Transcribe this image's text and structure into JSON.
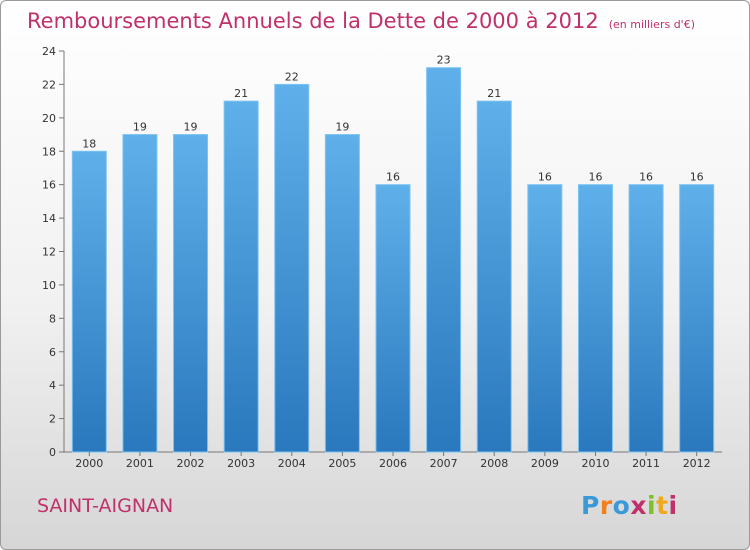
{
  "header": {
    "title": "Remboursements Annuels de la Dette de 2000 à 2012",
    "unit": "(en milliers d'€)"
  },
  "footer": {
    "place": "SAINT-AIGNAN",
    "logo": [
      "P",
      "r",
      "o",
      "x",
      "i",
      "t",
      "i"
    ],
    "logo_colors": [
      "#3a9ad9",
      "#f07f1e",
      "#3a9ad9",
      "#c0306a",
      "#7fbf2a",
      "#f0a81e",
      "#c0306a"
    ]
  },
  "colors": {
    "bar_top": "#5fb0ea",
    "bar_bottom": "#2a78bd",
    "text_accent": "#c0306a"
  },
  "chart_data": {
    "type": "bar",
    "title": "Remboursements Annuels de la Dette de 2000 à 2012",
    "xlabel": "",
    "ylabel": "",
    "categories": [
      "2000",
      "2001",
      "2002",
      "2003",
      "2004",
      "2005",
      "2006",
      "2007",
      "2008",
      "2009",
      "2010",
      "2011",
      "2012"
    ],
    "values": [
      18,
      19,
      19,
      21,
      22,
      19,
      16,
      23,
      21,
      16,
      16,
      16,
      16
    ],
    "ylim": [
      0,
      24
    ],
    "yticks": [
      0,
      2,
      4,
      6,
      8,
      10,
      12,
      14,
      16,
      18,
      20,
      22,
      24
    ],
    "grid": false,
    "data_labels": true
  }
}
